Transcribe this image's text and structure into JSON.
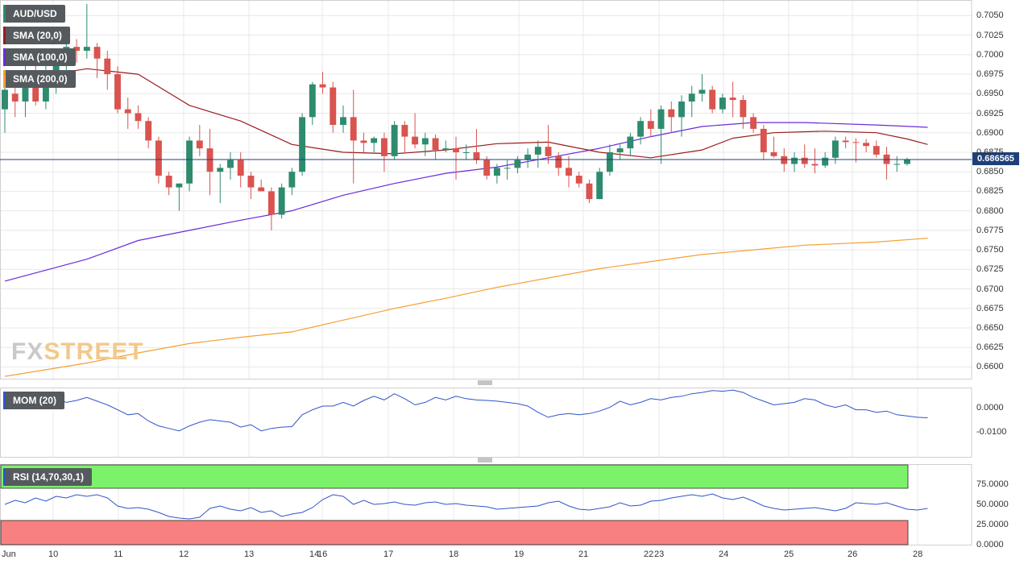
{
  "legend": {
    "symbol": "AUD/USD",
    "sma20": "SMA (20,0)",
    "sma100": "SMA (100,0)",
    "sma200": "SMA (200,0)",
    "mom": "MOM (20)",
    "rsi": "RSI (14,70,30,1)"
  },
  "colors": {
    "bull": "#2e8b6e",
    "bear": "#d9534f",
    "sma20": "#9c1c1c",
    "sma100": "#6a2bd9",
    "sma200": "#f5a031",
    "mom": "#2f55c9",
    "rsi": "#2f55c9",
    "rsi_overbought": "#7cf26a",
    "rsi_oversold": "#f88080",
    "price_line": "#1f3f7a"
  },
  "logo": {
    "part1": "FX",
    "part2": "STREET"
  },
  "current_price": "0.686565",
  "chart_data": [
    {
      "type": "candlestick",
      "title": "AUD/USD",
      "ylim": [
        0.6585,
        0.707
      ],
      "yticks": [
        "0.7050",
        "0.7025",
        "0.7000",
        "0.6975",
        "0.6950",
        "0.6925",
        "0.6900",
        "0.6875",
        "0.6850",
        "0.6825",
        "0.6800",
        "0.6775",
        "0.6750",
        "0.6725",
        "0.6700",
        "0.6675",
        "0.6650",
        "0.6625",
        "0.6600"
      ],
      "xticks": [
        "Jun",
        "10",
        "11",
        "12",
        "13",
        "14",
        "16",
        "17",
        "18",
        "19",
        "21",
        "22",
        "23",
        "24",
        "25",
        "26",
        "28"
      ],
      "candles": [
        [
          0.693,
          0.6975,
          0.69,
          0.6955
        ],
        [
          0.695,
          0.6975,
          0.692,
          0.694
        ],
        [
          0.694,
          0.699,
          0.692,
          0.6965
        ],
        [
          0.6965,
          0.6995,
          0.6935,
          0.694
        ],
        [
          0.694,
          0.6995,
          0.693,
          0.6975
        ],
        [
          0.6975,
          0.7,
          0.695,
          0.6995
        ],
        [
          0.6995,
          0.703,
          0.697,
          0.701
        ],
        [
          0.701,
          0.702,
          0.699,
          0.7005
        ],
        [
          0.7005,
          0.7065,
          0.6995,
          0.701
        ],
        [
          0.701,
          0.7015,
          0.697,
          0.6995
        ],
        [
          0.6995,
          0.7005,
          0.6955,
          0.6975
        ],
        [
          0.6975,
          0.6985,
          0.6925,
          0.693
        ],
        [
          0.693,
          0.6945,
          0.6905,
          0.6925
        ],
        [
          0.6925,
          0.6935,
          0.6905,
          0.6915
        ],
        [
          0.6915,
          0.692,
          0.688,
          0.689
        ],
        [
          0.689,
          0.6895,
          0.6835,
          0.6845
        ],
        [
          0.6845,
          0.685,
          0.682,
          0.683
        ],
        [
          0.683,
          0.6835,
          0.68,
          0.6835
        ],
        [
          0.6835,
          0.6895,
          0.6825,
          0.689
        ],
        [
          0.689,
          0.691,
          0.687,
          0.688
        ],
        [
          0.688,
          0.6905,
          0.682,
          0.685
        ],
        [
          0.685,
          0.686,
          0.681,
          0.6855
        ],
        [
          0.6855,
          0.6875,
          0.684,
          0.6865
        ],
        [
          0.6865,
          0.6875,
          0.683,
          0.6845
        ],
        [
          0.6845,
          0.685,
          0.6815,
          0.683
        ],
        [
          0.683,
          0.684,
          0.6825,
          0.6825
        ],
        [
          0.6825,
          0.683,
          0.6775,
          0.6795
        ],
        [
          0.6795,
          0.6835,
          0.679,
          0.683
        ],
        [
          0.683,
          0.6855,
          0.682,
          0.685
        ],
        [
          0.685,
          0.6925,
          0.6845,
          0.692
        ],
        [
          0.692,
          0.6965,
          0.691,
          0.6962
        ],
        [
          0.6962,
          0.6978,
          0.695,
          0.6958
        ],
        [
          0.6958,
          0.6965,
          0.69,
          0.691
        ],
        [
          0.691,
          0.6935,
          0.69,
          0.692
        ],
        [
          0.692,
          0.6955,
          0.6835,
          0.689
        ],
        [
          0.689,
          0.69,
          0.6875,
          0.6887
        ],
        [
          0.6887,
          0.6895,
          0.6875,
          0.6893
        ],
        [
          0.6893,
          0.69,
          0.685,
          0.687
        ],
        [
          0.687,
          0.6915,
          0.6865,
          0.691
        ],
        [
          0.691,
          0.6915,
          0.6875,
          0.6895
        ],
        [
          0.6895,
          0.6925,
          0.688,
          0.6885
        ],
        [
          0.6885,
          0.69,
          0.687,
          0.6893
        ],
        [
          0.6893,
          0.6898,
          0.6865,
          0.6878
        ],
        [
          0.6878,
          0.689,
          0.6875,
          0.688
        ],
        [
          0.688,
          0.6895,
          0.684,
          0.6875
        ],
        [
          0.6875,
          0.6885,
          0.6865,
          0.6875
        ],
        [
          0.6875,
          0.6905,
          0.686,
          0.6865
        ],
        [
          0.6865,
          0.687,
          0.684,
          0.6845
        ],
        [
          0.6845,
          0.686,
          0.6835,
          0.6855
        ],
        [
          0.6855,
          0.6865,
          0.684,
          0.6855
        ],
        [
          0.6855,
          0.687,
          0.6848,
          0.6865
        ],
        [
          0.6865,
          0.688,
          0.6855,
          0.6872
        ],
        [
          0.6872,
          0.689,
          0.6855,
          0.6882
        ],
        [
          0.6882,
          0.691,
          0.686,
          0.687
        ],
        [
          0.687,
          0.6875,
          0.6845,
          0.6855
        ],
        [
          0.6855,
          0.687,
          0.683,
          0.6845
        ],
        [
          0.6845,
          0.685,
          0.683,
          0.6835
        ],
        [
          0.6835,
          0.684,
          0.681,
          0.6815
        ],
        [
          0.6815,
          0.6855,
          0.6815,
          0.685
        ],
        [
          0.685,
          0.6885,
          0.6845,
          0.6875
        ],
        [
          0.6875,
          0.6885,
          0.6865,
          0.688
        ],
        [
          0.688,
          0.69,
          0.687,
          0.6895
        ],
        [
          0.6895,
          0.692,
          0.6885,
          0.6915
        ],
        [
          0.6915,
          0.693,
          0.6895,
          0.6905
        ],
        [
          0.6905,
          0.6935,
          0.686,
          0.693
        ],
        [
          0.693,
          0.694,
          0.69,
          0.692
        ],
        [
          0.692,
          0.6948,
          0.6895,
          0.694
        ],
        [
          0.694,
          0.696,
          0.692,
          0.695
        ],
        [
          0.695,
          0.6975,
          0.694,
          0.6955
        ],
        [
          0.6955,
          0.696,
          0.6925,
          0.693
        ],
        [
          0.693,
          0.695,
          0.6925,
          0.6945
        ],
        [
          0.6945,
          0.6965,
          0.692,
          0.6942
        ],
        [
          0.6942,
          0.6948,
          0.6905,
          0.692
        ],
        [
          0.692,
          0.6925,
          0.69,
          0.6905
        ],
        [
          0.6905,
          0.691,
          0.6865,
          0.6875
        ],
        [
          0.6875,
          0.6895,
          0.6868,
          0.687
        ],
        [
          0.687,
          0.688,
          0.685,
          0.686
        ],
        [
          0.686,
          0.6875,
          0.685,
          0.6868
        ],
        [
          0.6868,
          0.6885,
          0.6855,
          0.686
        ],
        [
          0.686,
          0.688,
          0.6848,
          0.6858
        ],
        [
          0.6858,
          0.6875,
          0.6855,
          0.6868
        ],
        [
          0.6868,
          0.6895,
          0.686,
          0.689
        ],
        [
          0.689,
          0.6895,
          0.688,
          0.6888
        ],
        [
          0.6888,
          0.6893,
          0.6862,
          0.6887
        ],
        [
          0.6887,
          0.6892,
          0.6875,
          0.6883
        ],
        [
          0.6883,
          0.689,
          0.6868,
          0.6872
        ],
        [
          0.6872,
          0.6882,
          0.684,
          0.686
        ],
        [
          0.686,
          0.687,
          0.685,
          0.686
        ],
        [
          0.686,
          0.6868,
          0.6858,
          0.6866
        ]
      ],
      "sma20": [
        [
          0,
          0.6965
        ],
        [
          8,
          0.6982
        ],
        [
          13,
          0.6975
        ],
        [
          18,
          0.6935
        ],
        [
          23,
          0.6915
        ],
        [
          28,
          0.6885
        ],
        [
          33,
          0.6875
        ],
        [
          38,
          0.6873
        ],
        [
          43,
          0.6878
        ],
        [
          48,
          0.6886
        ],
        [
          53,
          0.6888
        ],
        [
          58,
          0.6875
        ],
        [
          63,
          0.6868
        ],
        [
          68,
          0.6878
        ],
        [
          71,
          0.6893
        ],
        [
          75,
          0.69
        ],
        [
          80,
          0.6902
        ],
        [
          85,
          0.69
        ],
        [
          88,
          0.6892
        ],
        [
          90,
          0.6885
        ]
      ],
      "sma100": [
        [
          0,
          0.671
        ],
        [
          8,
          0.6738
        ],
        [
          13,
          0.6762
        ],
        [
          18,
          0.6775
        ],
        [
          23,
          0.6788
        ],
        [
          28,
          0.68
        ],
        [
          33,
          0.682
        ],
        [
          38,
          0.6835
        ],
        [
          43,
          0.6848
        ],
        [
          48,
          0.6856
        ],
        [
          53,
          0.6868
        ],
        [
          58,
          0.688
        ],
        [
          63,
          0.6895
        ],
        [
          68,
          0.6908
        ],
        [
          73,
          0.6913
        ],
        [
          78,
          0.6913
        ],
        [
          85,
          0.691
        ],
        [
          90,
          0.6907
        ]
      ],
      "sma200": [
        [
          0,
          0.6588
        ],
        [
          8,
          0.6605
        ],
        [
          13,
          0.6618
        ],
        [
          18,
          0.663
        ],
        [
          23,
          0.6638
        ],
        [
          28,
          0.6645
        ],
        [
          33,
          0.666
        ],
        [
          38,
          0.6675
        ],
        [
          43,
          0.6688
        ],
        [
          48,
          0.6702
        ],
        [
          53,
          0.6714
        ],
        [
          58,
          0.6726
        ],
        [
          63,
          0.6735
        ],
        [
          68,
          0.6744
        ],
        [
          73,
          0.675
        ],
        [
          78,
          0.6756
        ],
        [
          85,
          0.676
        ],
        [
          90,
          0.6765
        ]
      ]
    },
    {
      "type": "line",
      "title": "MOM (20)",
      "ylim": [
        -0.02,
        0.008
      ],
      "yticks": [
        "0.0000",
        "-0.0100"
      ],
      "values": [
        0.0045,
        0.004,
        0.003,
        0.0042,
        0.001,
        0.0035,
        0.002,
        0.0028,
        0.004,
        0.0025,
        0.001,
        -0.001,
        -0.003,
        -0.0025,
        -0.0055,
        -0.0075,
        -0.0085,
        -0.0095,
        -0.0075,
        -0.006,
        -0.005,
        -0.0055,
        -0.006,
        -0.008,
        -0.007,
        -0.0095,
        -0.0085,
        -0.008,
        -0.0078,
        -0.003,
        -0.001,
        0.0005,
        0.0005,
        0.002,
        0.0005,
        0.0028,
        0.0045,
        0.003,
        0.0055,
        0.0035,
        0.001,
        0.002,
        0.004,
        0.003,
        0.0045,
        0.0035,
        0.003,
        0.0028,
        0.0025,
        0.002,
        0.0015,
        0.0005,
        -0.002,
        -0.004,
        -0.003,
        -0.0025,
        -0.003,
        -0.0025,
        -0.0015,
        0.0,
        0.0025,
        0.001,
        0.002,
        0.0035,
        0.003,
        0.004,
        0.0045,
        0.0055,
        0.006,
        0.0068,
        0.0065,
        0.007,
        0.006,
        0.004,
        0.0025,
        0.001,
        0.0015,
        0.002,
        0.0035,
        0.003,
        0.001,
        0.0,
        0.001,
        -0.001,
        -0.001,
        -0.002,
        -0.0015,
        -0.003,
        -0.0035,
        -0.004,
        -0.0042
      ]
    },
    {
      "type": "line",
      "title": "RSI (14,70,30,1)",
      "ylim": [
        0,
        100
      ],
      "yticks": [
        "75.0000",
        "50.0000",
        "25.0000",
        "0.0000"
      ],
      "overbought": 70,
      "oversold": 30,
      "values": [
        50,
        55,
        52,
        58,
        54,
        60,
        58,
        62,
        60,
        62,
        58,
        48,
        45,
        46,
        44,
        40,
        35,
        33,
        32,
        34,
        45,
        48,
        44,
        42,
        46,
        40,
        42,
        35,
        38,
        40,
        46,
        56,
        62,
        60,
        50,
        55,
        50,
        51,
        53,
        50,
        49,
        52,
        53,
        50,
        51,
        49,
        48,
        47,
        44,
        45,
        46,
        47,
        48,
        52,
        54,
        48,
        44,
        43,
        45,
        47,
        52,
        48,
        49,
        54,
        55,
        58,
        60,
        62,
        60,
        63,
        58,
        56,
        59,
        54,
        48,
        45,
        43,
        44,
        45,
        46,
        44,
        42,
        45,
        52,
        51,
        50,
        52,
        48,
        44,
        43,
        45
      ]
    }
  ]
}
